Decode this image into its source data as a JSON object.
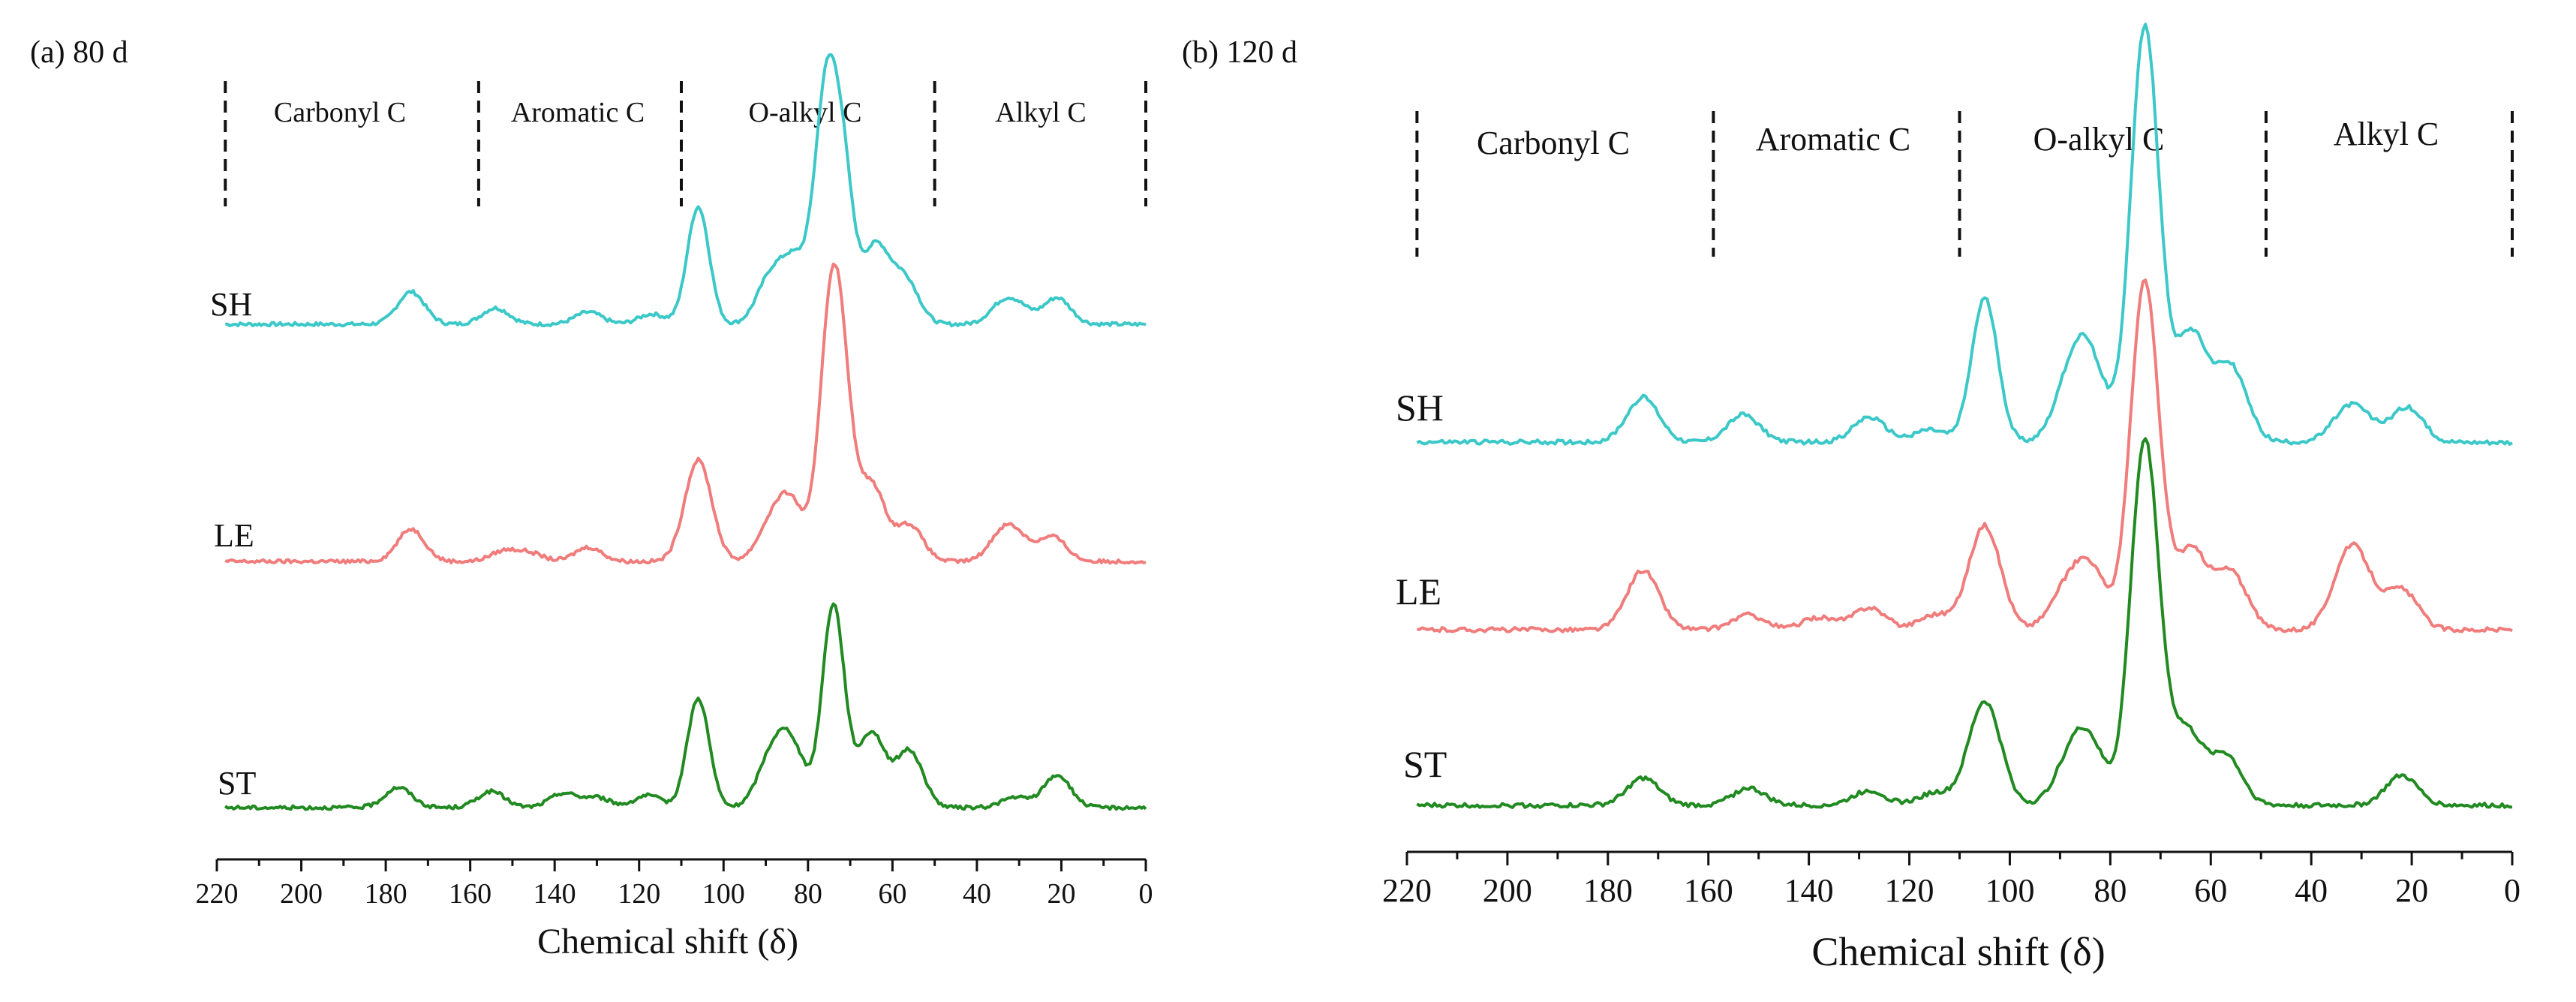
{
  "chart_data": [
    {
      "type": "line",
      "panel_label": "(a) 80 d",
      "xlabel": "Chemical shift (δ)",
      "ylabel": "",
      "xlim": [
        220,
        0
      ],
      "x_ticks": [
        "220",
        "200",
        "180",
        "160",
        "140",
        "120",
        "100",
        "80",
        "60",
        "40",
        "20",
        "0"
      ],
      "region_boundaries": [
        218,
        158,
        110,
        50,
        0
      ],
      "regions": [
        "Carbonyl C",
        "Aromatic C",
        "O-alkyl C",
        "Alkyl C"
      ],
      "series": [
        {
          "name": "SH",
          "color": "#3cc8c8",
          "peaks": [
            [
              174,
              0.16
            ],
            [
              154,
              0.08
            ],
            [
              132,
              0.06
            ],
            [
              117,
              0.05
            ],
            [
              106,
              0.58
            ],
            [
              89,
              0.22
            ],
            [
              83,
              0.3
            ],
            [
              76,
              1.0
            ],
            [
              72,
              0.75
            ],
            [
              64,
              0.38
            ],
            [
              57,
              0.22
            ],
            [
              34,
              0.09
            ],
            [
              30,
              0.07
            ],
            [
              21,
              0.13
            ]
          ]
        },
        {
          "name": "LE",
          "color": "#f07c7c",
          "peaks": [
            [
              174,
              0.16
            ],
            [
              152,
              0.05
            ],
            [
              146,
              0.04
            ],
            [
              132,
              0.07
            ],
            [
              106,
              0.5
            ],
            [
              89,
              0.16
            ],
            [
              84,
              0.28
            ],
            [
              75,
              0.97
            ],
            [
              72,
              0.75
            ],
            [
              65,
              0.38
            ],
            [
              56,
              0.18
            ],
            [
              34,
              0.13
            ],
            [
              30,
              0.09
            ],
            [
              22,
              0.12
            ]
          ]
        },
        {
          "name": "ST",
          "color": "#218a21",
          "peaks": [
            [
              177,
              0.1
            ],
            [
              155,
              0.08
            ],
            [
              138,
              0.07
            ],
            [
              130,
              0.05
            ],
            [
              118,
              0.06
            ],
            [
              106,
              0.54
            ],
            [
              89,
              0.22
            ],
            [
              84,
              0.3
            ],
            [
              74,
              1.0
            ],
            [
              65,
              0.37
            ],
            [
              56,
              0.28
            ],
            [
              31,
              0.05
            ],
            [
              21,
              0.16
            ]
          ]
        }
      ]
    },
    {
      "type": "line",
      "panel_label": "(b) 120 d",
      "xlabel": "Chemical shift (δ)",
      "ylabel": "",
      "xlim": [
        220,
        0
      ],
      "x_ticks": [
        "220",
        "200",
        "180",
        "160",
        "140",
        "120",
        "100",
        "80",
        "60",
        "40",
        "20",
        "0"
      ],
      "region_boundaries": [
        218,
        159,
        110,
        49,
        0
      ],
      "regions": [
        "Carbonyl C",
        "Aromatic C",
        "O-alkyl C",
        "Alkyl C"
      ],
      "series": [
        {
          "name": "SH",
          "color": "#3cc8c8",
          "peaks": [
            [
              173,
              0.18
            ],
            [
              153,
              0.11
            ],
            [
              128,
              0.1
            ],
            [
              116,
              0.05
            ],
            [
              105,
              0.58
            ],
            [
              88,
              0.22
            ],
            [
              84,
              0.3
            ],
            [
              74,
              1.0
            ],
            [
              72,
              0.8
            ],
            [
              64,
              0.44
            ],
            [
              56,
              0.3
            ],
            [
              33,
              0.1
            ],
            [
              30,
              0.07
            ],
            [
              21,
              0.14
            ]
          ]
        },
        {
          "name": "LE",
          "color": "#f07c7c",
          "peaks": [
            [
              173,
              0.24
            ],
            [
              152,
              0.06
            ],
            [
              138,
              0.05
            ],
            [
              128,
              0.09
            ],
            [
              115,
              0.06
            ],
            [
              105,
              0.42
            ],
            [
              89,
              0.14
            ],
            [
              84,
              0.24
            ],
            [
              74,
              0.85
            ],
            [
              72,
              0.66
            ],
            [
              64,
              0.32
            ],
            [
              56,
              0.23
            ],
            [
              33,
              0.22
            ],
            [
              30,
              0.16
            ],
            [
              22,
              0.16
            ]
          ]
        },
        {
          "name": "ST",
          "color": "#218a21",
          "peaks": [
            [
              173,
              0.11
            ],
            [
              152,
              0.07
            ],
            [
              128,
              0.06
            ],
            [
              115,
              0.05
            ],
            [
              105,
              0.42
            ],
            [
              88,
              0.16
            ],
            [
              84,
              0.22
            ],
            [
              74,
              0.88
            ],
            [
              72,
              0.7
            ],
            [
              65,
              0.3
            ],
            [
              57,
              0.2
            ],
            [
              22,
              0.12
            ]
          ]
        }
      ]
    }
  ]
}
